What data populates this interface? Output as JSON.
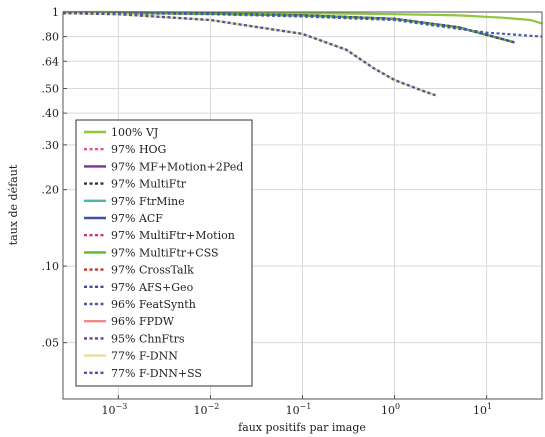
{
  "chart_data": {
    "type": "line",
    "title": "",
    "xlabel": "faux positifs par image",
    "ylabel": "taux de défaut",
    "x_scale": "log",
    "y_scale": "log",
    "xlim": [
      0.00025,
      40
    ],
    "ylim": [
      0.03,
      1
    ],
    "grid": true,
    "legend_position": "left",
    "x_ticks": [
      {
        "value": 0.001,
        "base": "10",
        "exp": "−3"
      },
      {
        "value": 0.01,
        "base": "10",
        "exp": "−2"
      },
      {
        "value": 0.1,
        "base": "10",
        "exp": "−1"
      },
      {
        "value": 1,
        "base": "10",
        "exp": "0"
      },
      {
        "value": 10,
        "base": "10",
        "exp": "1"
      }
    ],
    "y_ticks": [
      {
        "value": 1,
        "label": "1"
      },
      {
        "value": 0.8,
        "label": ".80"
      },
      {
        "value": 0.64,
        "label": ".64"
      },
      {
        "value": 0.5,
        "label": ".50"
      },
      {
        "value": 0.4,
        "label": ".40"
      },
      {
        "value": 0.3,
        "label": ".30"
      },
      {
        "value": 0.2,
        "label": ".20"
      },
      {
        "value": 0.1,
        "label": ".10"
      },
      {
        "value": 0.05,
        "label": ".05"
      }
    ],
    "series": [
      {
        "name": "100% VJ",
        "color": "#8dc63f",
        "dash": "solid",
        "x": [
          0.00025,
          0.001,
          0.01,
          0.1,
          1,
          5,
          15,
          30,
          40
        ],
        "y": [
          1,
          1,
          0.995,
          0.99,
          0.98,
          0.97,
          0.95,
          0.93,
          0.9
        ]
      },
      {
        "name": "97% HOG",
        "color": "#e8577a",
        "dash": "dash",
        "x": [
          0.00025,
          0.001,
          0.01,
          0.1,
          1,
          5,
          20
        ],
        "y": [
          0.99,
          0.99,
          0.985,
          0.97,
          0.94,
          0.87,
          0.76
        ]
      },
      {
        "name": "97% MF+Motion+2Ped",
        "color": "#7b3294",
        "dash": "solid",
        "x": [
          0.00025,
          0.001,
          0.01,
          0.1,
          1,
          5,
          20
        ],
        "y": [
          0.99,
          0.99,
          0.985,
          0.97,
          0.94,
          0.87,
          0.76
        ]
      },
      {
        "name": "97% MultiFtr",
        "color": "#333333",
        "dash": "dash",
        "x": [
          0.00025,
          0.001,
          0.01,
          0.1,
          1,
          5,
          20
        ],
        "y": [
          0.99,
          0.99,
          0.985,
          0.97,
          0.94,
          0.87,
          0.76
        ]
      },
      {
        "name": "97% FtrMine",
        "color": "#4bb8a9",
        "dash": "solid",
        "x": [
          0.00025,
          0.001,
          0.01,
          0.1,
          1,
          5,
          20
        ],
        "y": [
          0.99,
          0.99,
          0.985,
          0.97,
          0.94,
          0.87,
          0.76
        ]
      },
      {
        "name": "97% ACF",
        "color": "#3f51a3",
        "dash": "solid",
        "x": [
          0.00025,
          0.001,
          0.01,
          0.1,
          1,
          5,
          20
        ],
        "y": [
          0.99,
          0.99,
          0.985,
          0.97,
          0.94,
          0.87,
          0.76
        ]
      },
      {
        "name": "97% MultiFtr+Motion",
        "color": "#d62d6e",
        "dash": "dash",
        "x": [
          0.00025,
          0.001,
          0.01,
          0.1,
          1,
          5,
          20
        ],
        "y": [
          0.99,
          0.99,
          0.985,
          0.97,
          0.94,
          0.87,
          0.76
        ]
      },
      {
        "name": "97% MultiFtr+CSS",
        "color": "#5cb82c",
        "dash": "solid",
        "x": [
          0.00025,
          0.001,
          0.01,
          0.1,
          1,
          5,
          20
        ],
        "y": [
          0.99,
          0.99,
          0.985,
          0.97,
          0.94,
          0.87,
          0.76
        ]
      },
      {
        "name": "97% CrossTalk",
        "color": "#c9302c",
        "dash": "dash",
        "x": [
          0.00025,
          0.001,
          0.01,
          0.1,
          1,
          5,
          20
        ],
        "y": [
          0.99,
          0.99,
          0.985,
          0.97,
          0.94,
          0.87,
          0.76
        ]
      },
      {
        "name": "97% AFS+Geo",
        "color": "#3b4aa0",
        "dash": "dash",
        "x": [
          0.00025,
          0.001,
          0.01,
          0.1,
          1,
          5,
          20
        ],
        "y": [
          0.99,
          0.99,
          0.985,
          0.97,
          0.94,
          0.87,
          0.76
        ]
      },
      {
        "name": "96% FeatSynth",
        "color": "#4a5ab0",
        "dash": "dash",
        "x": [
          0.00025,
          0.001,
          0.01,
          0.1,
          1,
          3,
          10,
          40
        ],
        "y": [
          0.99,
          0.99,
          0.98,
          0.96,
          0.93,
          0.88,
          0.83,
          0.8
        ]
      },
      {
        "name": "96% FPDW",
        "color": "#f08a8a",
        "dash": "solid",
        "x": [
          0.00025,
          0.001,
          0.01,
          0.1,
          0.3,
          0.6,
          1,
          2,
          2.8
        ],
        "y": [
          0.99,
          0.98,
          0.93,
          0.82,
          0.71,
          0.6,
          0.54,
          0.49,
          0.47
        ]
      },
      {
        "name": "95% ChnFtrs",
        "color": "#6a3d9a",
        "dash": "dash",
        "x": [
          0.00025,
          0.001,
          0.01,
          0.1,
          0.3,
          0.6,
          1,
          2,
          2.8
        ],
        "y": [
          0.99,
          0.98,
          0.93,
          0.82,
          0.71,
          0.6,
          0.54,
          0.49,
          0.47
        ]
      },
      {
        "name": "77% F-DNN",
        "color": "#e8dd9a",
        "dash": "solid",
        "x": [
          0.00025,
          0.001,
          0.01,
          0.1,
          0.3,
          0.6,
          1,
          2,
          2.8
        ],
        "y": [
          0.99,
          0.98,
          0.93,
          0.82,
          0.71,
          0.6,
          0.54,
          0.49,
          0.47
        ]
      },
      {
        "name": "77% F-DNN+SS",
        "color": "#4456a8",
        "dash": "dash",
        "x": [
          0.00025,
          0.001,
          0.01,
          0.1,
          0.3,
          0.6,
          1,
          2,
          2.8
        ],
        "y": [
          0.99,
          0.98,
          0.93,
          0.82,
          0.71,
          0.6,
          0.54,
          0.49,
          0.47
        ]
      }
    ]
  }
}
